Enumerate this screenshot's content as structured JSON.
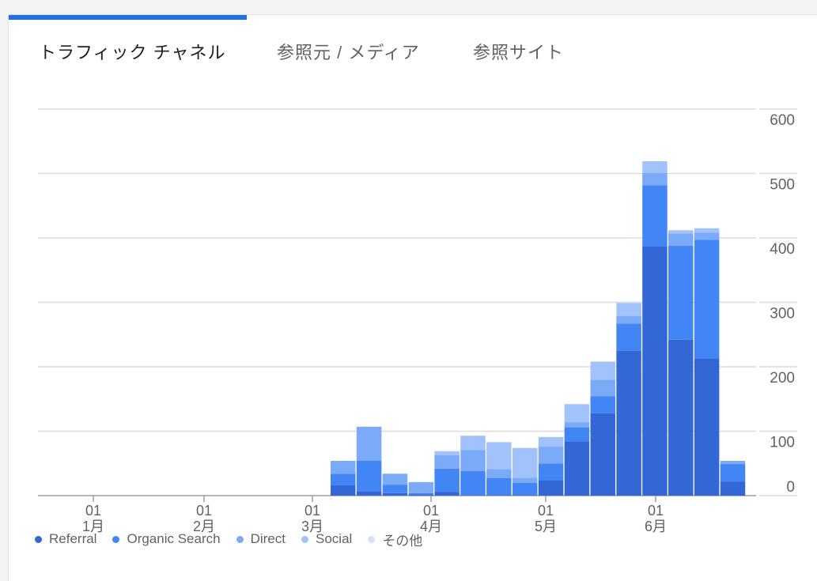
{
  "tabs": [
    {
      "label": "トラフィック チャネル",
      "active": true
    },
    {
      "label": "参照元 / メディア",
      "active": false
    },
    {
      "label": "参照サイト",
      "active": false
    }
  ],
  "chart_data": {
    "type": "bar",
    "stacked": true,
    "y_axis_position": "right",
    "ylim": [
      0,
      600
    ],
    "yticks": [
      "0",
      "100",
      "200",
      "300",
      "400",
      "500",
      "600"
    ],
    "month_labels": [
      {
        "day": "01",
        "month": "1月"
      },
      {
        "day": "01",
        "month": "2月"
      },
      {
        "day": "01",
        "month": "3月"
      },
      {
        "day": "01",
        "month": "4月"
      },
      {
        "day": "01",
        "month": "5月"
      },
      {
        "day": "01",
        "month": "6月"
      }
    ],
    "grid": true,
    "legend_position": "bottom-left",
    "series": [
      {
        "name": "Referral",
        "color": "#3367d6",
        "values": [
          16,
          7,
          4,
          2,
          6,
          1,
          1,
          1,
          24,
          84,
          128,
          225,
          387,
          242,
          213,
          22
        ]
      },
      {
        "name": "Organic Search",
        "color": "#4285f4",
        "values": [
          18,
          47,
          13,
          2,
          36,
          37,
          26,
          19,
          26,
          22,
          26,
          42,
          95,
          146,
          184,
          27
        ]
      },
      {
        "name": "Direct",
        "color": "#7baaf7",
        "values": [
          20,
          53,
          17,
          17,
          21,
          33,
          14,
          8,
          26,
          8,
          26,
          12,
          19,
          19,
          11,
          5
        ]
      },
      {
        "name": "Social",
        "color": "#a1c2fa",
        "values": [
          0,
          0,
          0,
          0,
          6,
          22,
          42,
          46,
          15,
          28,
          28,
          20,
          18,
          5,
          7,
          0
        ]
      },
      {
        "name": "その他",
        "color": "#d2e3fc",
        "values": [
          0,
          0,
          0,
          0,
          0,
          0,
          0,
          0,
          0,
          0,
          0,
          0,
          0,
          0,
          0,
          0
        ]
      }
    ]
  }
}
